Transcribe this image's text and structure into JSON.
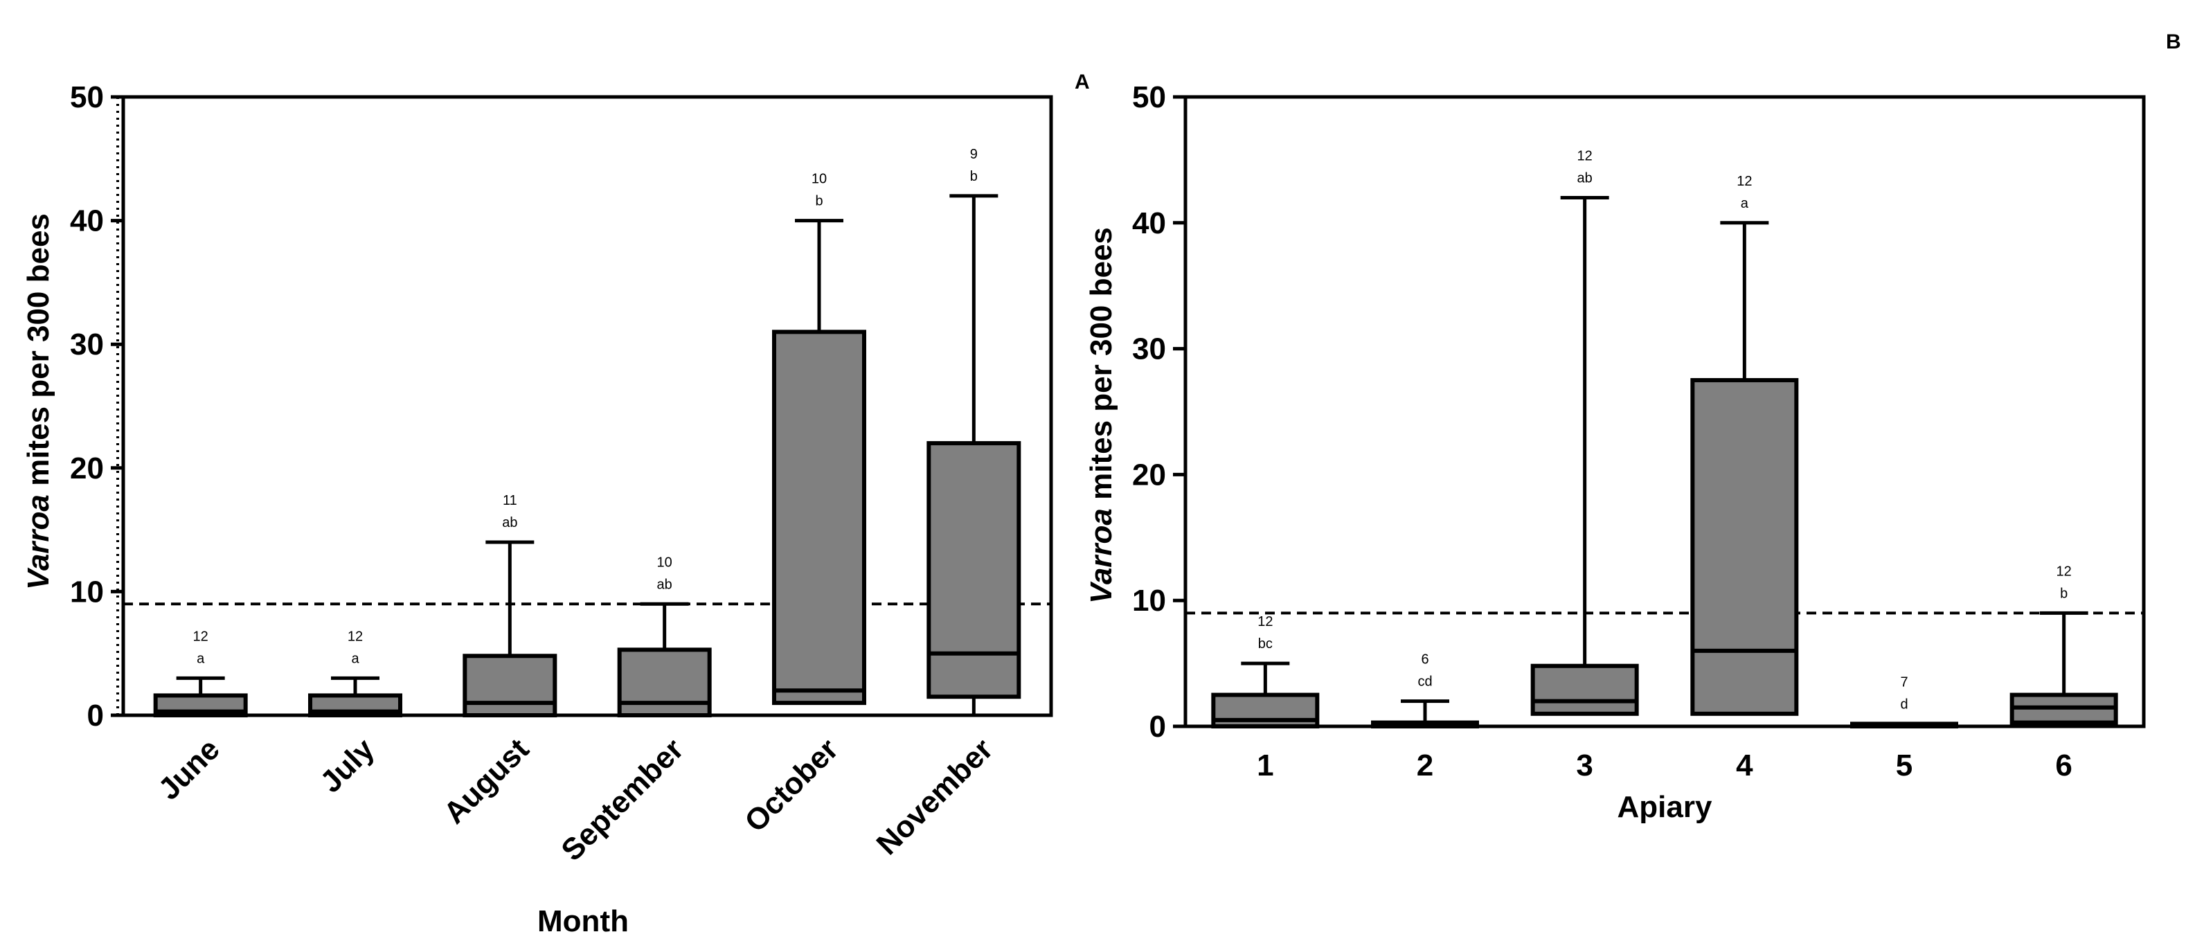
{
  "chart_data": [
    {
      "type": "boxplot",
      "panel": "A",
      "xlabel": "Month",
      "ylabel_italic": "Varroa",
      "ylabel_rest": " mites per 300 bees",
      "ylim": [
        0,
        50
      ],
      "yticks": [
        0,
        10,
        20,
        30,
        40,
        50
      ],
      "threshold": 9,
      "categories": [
        "June",
        "July",
        "August",
        "September",
        "October",
        "November"
      ],
      "min": [
        0,
        0,
        0,
        0,
        1,
        0
      ],
      "q1": [
        0,
        0,
        0,
        0,
        1,
        1.5
      ],
      "median": [
        0.3,
        0.3,
        1,
        1,
        2,
        5
      ],
      "q3": [
        1.6,
        1.6,
        4.8,
        5.3,
        31,
        22
      ],
      "max": [
        3,
        3,
        14,
        9,
        40,
        42
      ],
      "n": [
        "12",
        "12",
        "11",
        "10",
        "10",
        "9"
      ],
      "letters": [
        "a",
        "a",
        "ab",
        "ab",
        "b",
        "b"
      ]
    },
    {
      "type": "boxplot",
      "panel": "B",
      "xlabel": "Apiary",
      "ylabel_italic": "Varroa",
      "ylabel_rest": " mites per 300 bees",
      "ylim": [
        0,
        50
      ],
      "yticks": [
        0,
        10,
        20,
        30,
        40,
        50
      ],
      "threshold": 9,
      "categories": [
        "1",
        "2",
        "3",
        "4",
        "5",
        "6"
      ],
      "min": [
        0,
        0,
        1,
        1,
        0,
        0
      ],
      "q1": [
        0,
        0,
        1,
        1,
        0,
        0.3
      ],
      "median": [
        0.5,
        0.2,
        2,
        6,
        0.1,
        1.5
      ],
      "q3": [
        2.5,
        0.3,
        4.8,
        27.5,
        0.2,
        2.5
      ],
      "max": [
        5,
        2,
        42,
        40,
        0.2,
        9
      ],
      "n": [
        "12",
        "6",
        "12",
        "12",
        "7",
        "12"
      ],
      "letters": [
        "bc",
        "cd",
        "ab",
        "a",
        "d",
        "b"
      ]
    }
  ]
}
